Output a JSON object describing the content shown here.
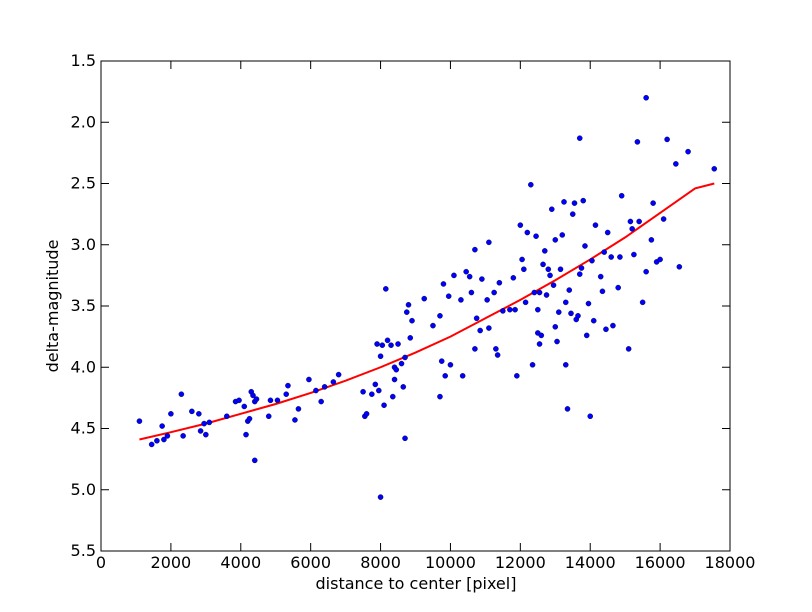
{
  "chart_data": {
    "type": "scatter",
    "title": "",
    "xlabel": "distance to center [pixel]",
    "ylabel": "delta-magnitude",
    "xlim": [
      0,
      18000
    ],
    "ylim": [
      5.5,
      1.5
    ],
    "y_inverted": true,
    "grid": false,
    "legend": "none",
    "xticks": [
      0,
      2000,
      4000,
      6000,
      8000,
      10000,
      12000,
      14000,
      16000,
      18000
    ],
    "xtick_labels": [
      "0",
      "2000",
      "4000",
      "6000",
      "8000",
      "10000",
      "12000",
      "14000",
      "16000",
      "18000"
    ],
    "yticks": [
      1.5,
      2.0,
      2.5,
      3.0,
      3.5,
      4.0,
      4.5,
      5.0,
      5.5
    ],
    "ytick_labels": [
      "1.5",
      "2.0",
      "2.5",
      "3.0",
      "3.5",
      "4.0",
      "4.5",
      "5.0",
      "5.5"
    ],
    "series": [
      {
        "type": "scatter",
        "color": "#0000ff",
        "points": [
          [
            1100,
            4.44
          ],
          [
            1450,
            4.63
          ],
          [
            1600,
            4.6
          ],
          [
            1750,
            4.48
          ],
          [
            1800,
            4.59
          ],
          [
            1900,
            4.56
          ],
          [
            2000,
            4.38
          ],
          [
            2300,
            4.22
          ],
          [
            2350,
            4.56
          ],
          [
            2600,
            4.36
          ],
          [
            2800,
            4.38
          ],
          [
            2850,
            4.52
          ],
          [
            2950,
            4.46
          ],
          [
            3000,
            4.55
          ],
          [
            3100,
            4.45
          ],
          [
            3600,
            4.4
          ],
          [
            3850,
            4.28
          ],
          [
            3950,
            4.27
          ],
          [
            4100,
            4.32
          ],
          [
            4150,
            4.55
          ],
          [
            4200,
            4.44
          ],
          [
            4250,
            4.42
          ],
          [
            4300,
            4.2
          ],
          [
            4350,
            4.23
          ],
          [
            4400,
            4.28
          ],
          [
            4450,
            4.26
          ],
          [
            4400,
            4.76
          ],
          [
            4800,
            4.4
          ],
          [
            4850,
            4.27
          ],
          [
            5050,
            4.27
          ],
          [
            5300,
            4.22
          ],
          [
            5350,
            4.15
          ],
          [
            5550,
            4.43
          ],
          [
            5650,
            4.34
          ],
          [
            5950,
            4.1
          ],
          [
            6150,
            4.19
          ],
          [
            6300,
            4.28
          ],
          [
            6400,
            4.16
          ],
          [
            6650,
            4.12
          ],
          [
            6800,
            4.06
          ],
          [
            7500,
            4.2
          ],
          [
            7550,
            4.4
          ],
          [
            7600,
            4.38
          ],
          [
            7750,
            4.22
          ],
          [
            7850,
            4.14
          ],
          [
            7900,
            3.81
          ],
          [
            7950,
            4.19
          ],
          [
            8000,
            3.91
          ],
          [
            8000,
            5.06
          ],
          [
            8050,
            3.82
          ],
          [
            8100,
            4.31
          ],
          [
            8150,
            3.36
          ],
          [
            8200,
            3.78
          ],
          [
            8300,
            3.82
          ],
          [
            8350,
            4.24
          ],
          [
            8400,
            4.1
          ],
          [
            8400,
            4.0
          ],
          [
            8450,
            4.02
          ],
          [
            8500,
            3.81
          ],
          [
            8600,
            3.97
          ],
          [
            8700,
            3.92
          ],
          [
            8650,
            4.16
          ],
          [
            8700,
            4.58
          ],
          [
            8750,
            3.55
          ],
          [
            8800,
            3.49
          ],
          [
            8850,
            3.76
          ],
          [
            8900,
            3.62
          ],
          [
            9250,
            3.44
          ],
          [
            9500,
            3.66
          ],
          [
            9700,
            3.58
          ],
          [
            9800,
            3.32
          ],
          [
            9750,
            3.95
          ],
          [
            9700,
            4.24
          ],
          [
            9850,
            4.07
          ],
          [
            9950,
            3.42
          ],
          [
            10000,
            3.98
          ],
          [
            10100,
            3.25
          ],
          [
            10350,
            4.07
          ],
          [
            10300,
            3.45
          ],
          [
            10450,
            3.22
          ],
          [
            10550,
            3.26
          ],
          [
            10600,
            3.39
          ],
          [
            10700,
            3.85
          ],
          [
            10700,
            3.04
          ],
          [
            10750,
            3.6
          ],
          [
            10850,
            3.7
          ],
          [
            10900,
            3.28
          ],
          [
            11050,
            3.45
          ],
          [
            11100,
            2.98
          ],
          [
            11100,
            3.68
          ],
          [
            11250,
            3.39
          ],
          [
            11300,
            3.85
          ],
          [
            11350,
            3.9
          ],
          [
            11400,
            3.31
          ],
          [
            11500,
            3.54
          ],
          [
            11700,
            3.53
          ],
          [
            11800,
            3.27
          ],
          [
            11850,
            3.53
          ],
          [
            11900,
            4.07
          ],
          [
            12000,
            2.84
          ],
          [
            12050,
            3.12
          ],
          [
            12100,
            3.2
          ],
          [
            12150,
            3.47
          ],
          [
            12200,
            2.9
          ],
          [
            12300,
            2.51
          ],
          [
            12350,
            3.98
          ],
          [
            12400,
            3.39
          ],
          [
            12450,
            2.93
          ],
          [
            12500,
            3.72
          ],
          [
            12500,
            3.53
          ],
          [
            12550,
            3.39
          ],
          [
            12550,
            3.81
          ],
          [
            12600,
            3.74
          ],
          [
            12650,
            3.16
          ],
          [
            12700,
            3.05
          ],
          [
            12750,
            3.41
          ],
          [
            12800,
            3.2
          ],
          [
            12850,
            3.25
          ],
          [
            12900,
            2.71
          ],
          [
            12950,
            3.33
          ],
          [
            13000,
            2.96
          ],
          [
            13000,
            3.67
          ],
          [
            13050,
            3.79
          ],
          [
            13100,
            3.55
          ],
          [
            13150,
            3.2
          ],
          [
            13200,
            2.92
          ],
          [
            13250,
            2.65
          ],
          [
            13300,
            3.47
          ],
          [
            13300,
            3.98
          ],
          [
            13350,
            4.34
          ],
          [
            13400,
            3.37
          ],
          [
            13450,
            3.56
          ],
          [
            13500,
            2.75
          ],
          [
            13550,
            2.66
          ],
          [
            13600,
            3.61
          ],
          [
            13650,
            3.58
          ],
          [
            13700,
            3.24
          ],
          [
            13750,
            3.19
          ],
          [
            13700,
            2.13
          ],
          [
            13800,
            2.64
          ],
          [
            13850,
            3.01
          ],
          [
            13900,
            3.74
          ],
          [
            13950,
            3.48
          ],
          [
            14000,
            4.4
          ],
          [
            14050,
            3.13
          ],
          [
            14100,
            3.62
          ],
          [
            14150,
            2.84
          ],
          [
            14300,
            3.26
          ],
          [
            14350,
            3.38
          ],
          [
            14400,
            3.06
          ],
          [
            14450,
            3.69
          ],
          [
            14500,
            2.9
          ],
          [
            14600,
            3.1
          ],
          [
            14650,
            3.66
          ],
          [
            14800,
            3.35
          ],
          [
            14850,
            3.1
          ],
          [
            14900,
            2.6
          ],
          [
            15100,
            3.85
          ],
          [
            15150,
            2.81
          ],
          [
            15200,
            2.87
          ],
          [
            15250,
            3.08
          ],
          [
            15350,
            2.16
          ],
          [
            15400,
            2.81
          ],
          [
            15500,
            3.47
          ],
          [
            15600,
            1.8
          ],
          [
            15600,
            3.22
          ],
          [
            15750,
            2.96
          ],
          [
            15800,
            2.66
          ],
          [
            15900,
            3.14
          ],
          [
            16000,
            3.12
          ],
          [
            16100,
            2.79
          ],
          [
            16200,
            2.14
          ],
          [
            16450,
            2.34
          ],
          [
            16550,
            3.18
          ],
          [
            16800,
            2.24
          ],
          [
            17550,
            2.38
          ]
        ]
      },
      {
        "type": "line",
        "color": "#ff0000",
        "points": [
          [
            1100,
            4.59
          ],
          [
            2000,
            4.53
          ],
          [
            3000,
            4.46
          ],
          [
            4000,
            4.38
          ],
          [
            5000,
            4.3
          ],
          [
            6000,
            4.21
          ],
          [
            7000,
            4.11
          ],
          [
            8000,
            4.0
          ],
          [
            9000,
            3.88
          ],
          [
            10000,
            3.75
          ],
          [
            11000,
            3.6
          ],
          [
            12000,
            3.45
          ],
          [
            13000,
            3.29
          ],
          [
            14000,
            3.12
          ],
          [
            15000,
            2.94
          ],
          [
            16000,
            2.74
          ],
          [
            17000,
            2.54
          ],
          [
            17550,
            2.5
          ]
        ]
      }
    ]
  }
}
